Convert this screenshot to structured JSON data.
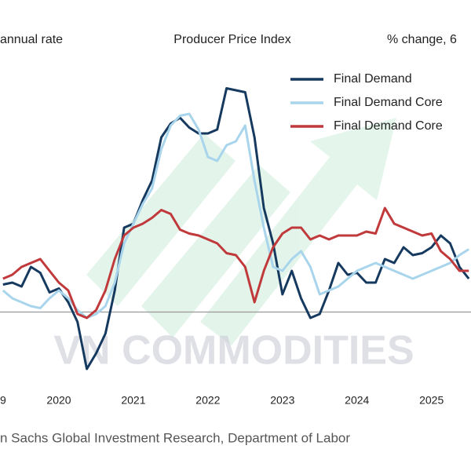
{
  "chart_data": {
    "type": "line",
    "title": "Producer Price Index",
    "subtitle_left": "annual rate",
    "subtitle_right": "% change, 6",
    "source": "n Sachs Global Investment Research, Department of Labor",
    "watermark": "VN COMMODITIES",
    "x": [
      2019.25,
      2019.375,
      2019.5,
      2019.625,
      2019.75,
      2019.875,
      2020,
      2020.125,
      2020.25,
      2020.375,
      2020.5,
      2020.625,
      2020.75,
      2020.875,
      2021,
      2021.125,
      2021.25,
      2021.375,
      2021.5,
      2021.625,
      2021.75,
      2021.875,
      2022,
      2022.125,
      2022.25,
      2022.375,
      2022.5,
      2022.625,
      2022.75,
      2022.875,
      2023,
      2023.125,
      2023.25,
      2023.375,
      2023.5,
      2023.625,
      2023.75,
      2023.875,
      2024,
      2024.125,
      2024.25,
      2024.375,
      2024.5,
      2024.625,
      2024.75,
      2024.875,
      2025,
      2025.125,
      2025.25,
      2025.375,
      2025.5
    ],
    "series": [
      {
        "name": "Final Demand",
        "color": "#163a5f",
        "values": [
          1.4,
          1.5,
          1.3,
          2.3,
          2.0,
          1.0,
          1.2,
          0.5,
          -0.5,
          -2.9,
          -2.1,
          -1.1,
          1.1,
          4.3,
          4.5,
          5.7,
          6.7,
          8.9,
          9.6,
          9.9,
          9.4,
          9.1,
          9.1,
          9.3,
          11.4,
          11.3,
          11.2,
          8.9,
          5.3,
          3.5,
          0.9,
          2.1,
          0.7,
          -0.3,
          -0.1,
          1.1,
          2.5,
          1.9,
          2.0,
          1.5,
          1.5,
          2.7,
          2.5,
          3.3,
          2.9,
          3.0,
          3.3,
          3.9,
          3.5,
          2.3,
          1.7
        ]
      },
      {
        "name": "Final Demand Core",
        "color": "#a9d5ec",
        "values": [
          1.1,
          0.7,
          0.5,
          0.3,
          0.2,
          0.7,
          1.1,
          0.7,
          0.1,
          -0.3,
          -0.1,
          0.3,
          1.5,
          3.5,
          4.5,
          5.5,
          6.3,
          8.3,
          9.5,
          10.0,
          10.1,
          9.3,
          7.9,
          7.7,
          8.5,
          8.7,
          9.5,
          6.7,
          4.3,
          2.3,
          2.1,
          2.7,
          3.1,
          2.3,
          0.9,
          1.1,
          1.3,
          1.7,
          2.1,
          2.3,
          2.5,
          2.3,
          2.1,
          1.9,
          1.7,
          1.9,
          2.1,
          2.3,
          2.5,
          2.9,
          3.2
        ]
      },
      {
        "name": "Final Demand Core",
        "color": "#c0393b",
        "values": [
          1.7,
          1.9,
          2.3,
          2.5,
          2.7,
          2.1,
          1.5,
          1.1,
          -0.1,
          -0.3,
          0.1,
          1.1,
          2.7,
          3.9,
          4.3,
          4.5,
          4.8,
          5.2,
          5.0,
          4.2,
          4.0,
          3.9,
          3.7,
          3.5,
          3.0,
          2.9,
          2.3,
          0.5,
          2.1,
          3.3,
          4.0,
          4.3,
          4.3,
          3.7,
          3.9,
          3.7,
          3.9,
          3.9,
          3.9,
          4.1,
          4.0,
          5.3,
          4.5,
          4.3,
          4.1,
          3.9,
          4.0,
          3.1,
          2.7,
          2.1,
          2.1
        ]
      }
    ],
    "xlim": [
      2019.21,
      2025.53
    ],
    "xticks": [
      {
        "value": 2019,
        "label": "9"
      },
      2020,
      2021,
      2022,
      2023,
      2024,
      2025
    ],
    "ylim": [
      -3.7,
      13.5
    ],
    "hline": 0,
    "legend": "top-right"
  }
}
